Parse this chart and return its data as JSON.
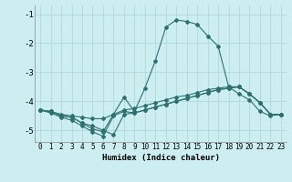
{
  "xlabel": "Humidex (Indice chaleur)",
  "background_color": "#cceef0",
  "grid_color": "#b0d8da",
  "line_color": "#2e7070",
  "xlim": [
    -0.5,
    23.5
  ],
  "ylim": [
    -5.4,
    -0.7
  ],
  "yticks": [
    -5,
    -4,
    -3,
    -2,
    -1
  ],
  "xticks": [
    0,
    1,
    2,
    3,
    4,
    5,
    6,
    7,
    8,
    9,
    10,
    11,
    12,
    13,
    14,
    15,
    16,
    17,
    18,
    19,
    20,
    21,
    22,
    23
  ],
  "line1_x": [
    0,
    1,
    2,
    3,
    4,
    5,
    6,
    7,
    8,
    9,
    10,
    11,
    12,
    13,
    14,
    15,
    16,
    17,
    18,
    19,
    20,
    21,
    22,
    23
  ],
  "line1_y": [
    -4.3,
    -4.35,
    -4.5,
    -4.55,
    -4.75,
    -4.95,
    -5.05,
    -4.45,
    -3.85,
    -4.35,
    -3.55,
    -2.6,
    -1.45,
    -1.2,
    -1.25,
    -1.35,
    -1.75,
    -2.1,
    -3.5,
    -3.75,
    -3.95,
    -4.35,
    -4.5,
    -4.45
  ],
  "line2_x": [
    0,
    1,
    2,
    3,
    4,
    5,
    6,
    7,
    8,
    9,
    10,
    11,
    12,
    13,
    14,
    15,
    16,
    17,
    18,
    19,
    20,
    21,
    22,
    23
  ],
  "line2_y": [
    -4.3,
    -4.35,
    -4.45,
    -4.5,
    -4.55,
    -4.6,
    -4.6,
    -4.45,
    -4.3,
    -4.25,
    -4.15,
    -4.05,
    -3.95,
    -3.85,
    -3.8,
    -3.7,
    -3.6,
    -3.55,
    -3.5,
    -3.5,
    -3.75,
    -4.05,
    -4.45,
    -4.45
  ],
  "line3_x": [
    0,
    1,
    2,
    3,
    4,
    5,
    6,
    7,
    8,
    9,
    10,
    11,
    12,
    13,
    14,
    15,
    16,
    17,
    18,
    19,
    20,
    21,
    22,
    23
  ],
  "line3_y": [
    -4.3,
    -4.35,
    -4.5,
    -4.55,
    -4.75,
    -4.85,
    -5.0,
    -5.15,
    -4.45,
    -4.4,
    -4.3,
    -4.2,
    -4.1,
    -4.0,
    -3.9,
    -3.8,
    -3.7,
    -3.6,
    -3.55,
    -3.5,
    -3.75,
    -4.05,
    -4.45,
    -4.45
  ],
  "line4_x": [
    0,
    1,
    2,
    3,
    4,
    5,
    6,
    7,
    8,
    9,
    10,
    11,
    12,
    13,
    14,
    15,
    16,
    17,
    18,
    19,
    20,
    21,
    22,
    23
  ],
  "line4_y": [
    -4.3,
    -4.4,
    -4.55,
    -4.65,
    -4.85,
    -5.05,
    -5.2,
    -4.5,
    -4.35,
    -4.4,
    -4.3,
    -4.2,
    -4.1,
    -4.0,
    -3.9,
    -3.8,
    -3.7,
    -3.6,
    -3.55,
    -3.5,
    -3.75,
    -4.05,
    -4.45,
    -4.45
  ]
}
